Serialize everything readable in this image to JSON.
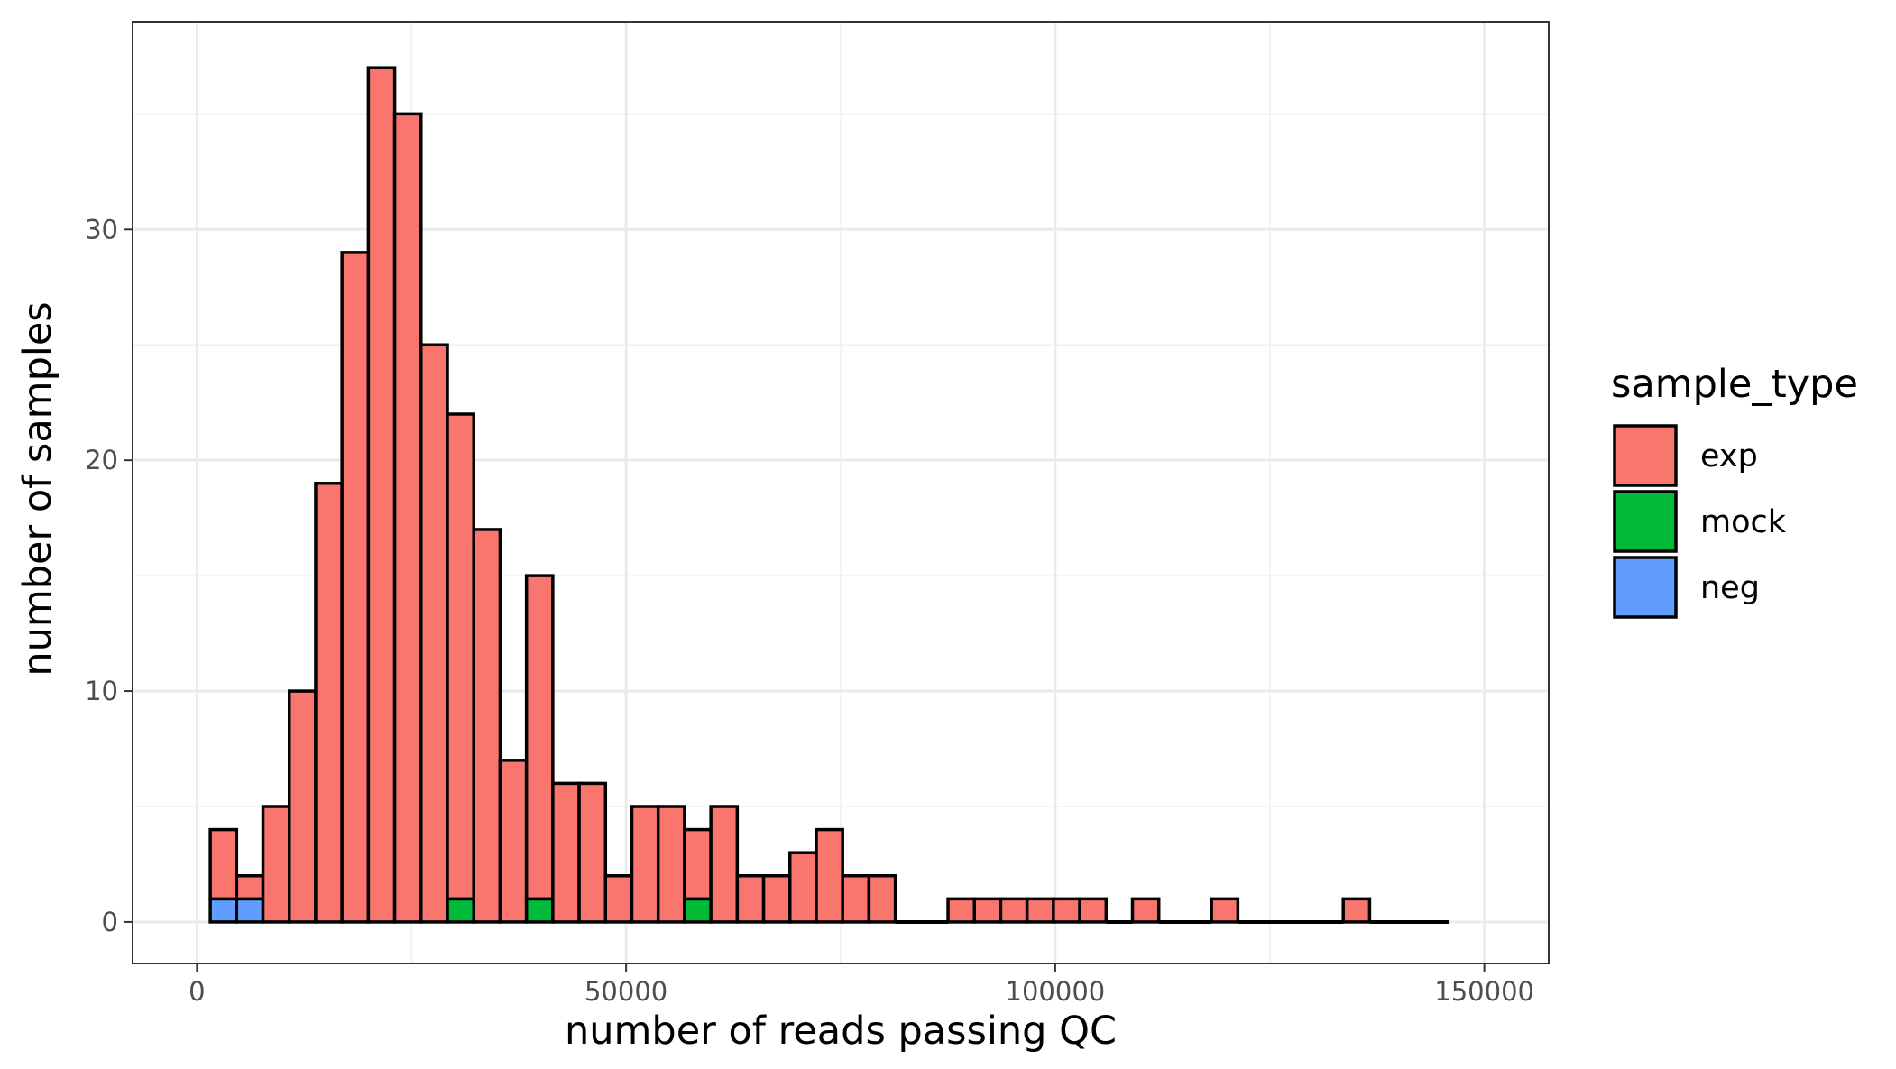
{
  "chart_data": {
    "type": "bar",
    "subtype": "stacked-histogram",
    "xlabel": "number of reads passing QC",
    "ylabel": "number of samples",
    "xlim": [
      -7500,
      157500
    ],
    "ylim": [
      -1.8,
      39
    ],
    "x_ticks": [
      0,
      50000,
      100000,
      150000
    ],
    "y_ticks": [
      0,
      10,
      20,
      30
    ],
    "bin_width": 3070,
    "bin_start": 1550,
    "grid": true,
    "legend": {
      "title": "sample_type",
      "position": "right"
    },
    "series": [
      {
        "name": "exp",
        "color": "#F8766D",
        "values": [
          3,
          1,
          5,
          10,
          19,
          29,
          37,
          35,
          25,
          21,
          17,
          7,
          14,
          6,
          6,
          2,
          5,
          5,
          3,
          5,
          2,
          2,
          3,
          4,
          2,
          2,
          0,
          0,
          1,
          1,
          1,
          1,
          1,
          1,
          0,
          1,
          0,
          0,
          1,
          0,
          0,
          0,
          0,
          1,
          0,
          0,
          0
        ]
      },
      {
        "name": "mock",
        "color": "#00BA38",
        "values": [
          0,
          0,
          0,
          0,
          0,
          0,
          0,
          0,
          0,
          1,
          0,
          0,
          1,
          0,
          0,
          0,
          0,
          0,
          1,
          0,
          0,
          0,
          0,
          0,
          0,
          0,
          0,
          0,
          0,
          0,
          0,
          0,
          0,
          0,
          0,
          0,
          0,
          0,
          0,
          0,
          0,
          0,
          0,
          0,
          0,
          0,
          0
        ]
      },
      {
        "name": "neg",
        "color": "#619CFF",
        "values": [
          1,
          1,
          0,
          0,
          0,
          0,
          0,
          0,
          0,
          0,
          0,
          0,
          0,
          0,
          0,
          0,
          0,
          0,
          0,
          0,
          0,
          0,
          0,
          0,
          0,
          0,
          0,
          0,
          0,
          0,
          0,
          0,
          0,
          0,
          0,
          0,
          0,
          0,
          0,
          0,
          0,
          0,
          0,
          0,
          0,
          0,
          0
        ]
      }
    ]
  }
}
